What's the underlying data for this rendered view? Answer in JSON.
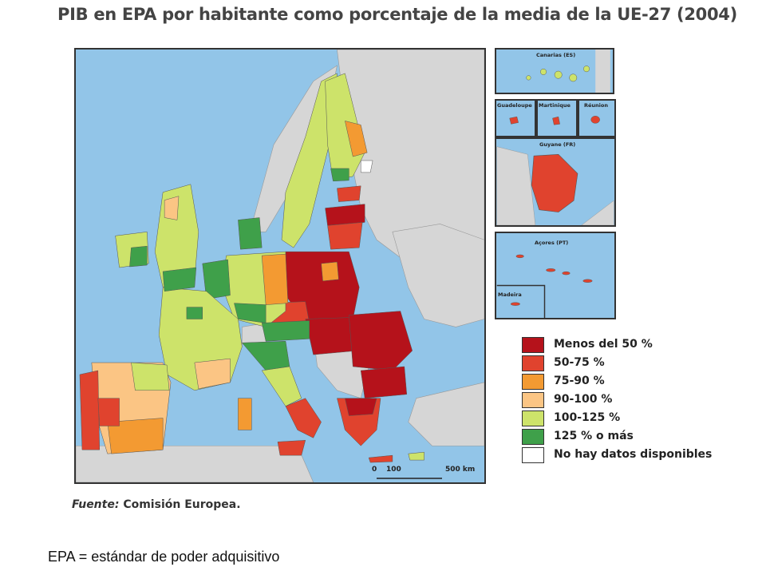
{
  "title": "PIB en EPA por habitante como porcentaje de la media de la UE-27 (2004)",
  "colors": {
    "sea": "#92c5e8",
    "non_eu": "#d6d6d6",
    "lt50": "#b5121b",
    "r50_75": "#e0432e",
    "r75_90": "#f39a32",
    "r90_100": "#fbc584",
    "r100_125": "#cde36a",
    "gt125": "#3fa04a",
    "nodata": "#ffffff"
  },
  "legend": [
    {
      "label": "Menos del 50 %",
      "color": "#b5121b"
    },
    {
      "label": "50-75 %",
      "color": "#e0432e"
    },
    {
      "label": "75-90 %",
      "color": "#f39a32"
    },
    {
      "label": "90-100 %",
      "color": "#fbc584"
    },
    {
      "label": "100-125 %",
      "color": "#cde36a"
    },
    {
      "label": "125 % o más",
      "color": "#3fa04a"
    },
    {
      "label": "No hay datos disponibles",
      "color": "#ffffff"
    }
  ],
  "insets": {
    "canarias": "Canarias (ES)",
    "guadeloupe": "Guadeloupe",
    "martinique": "Martinique",
    "reunion": "Réunion",
    "guyane": "Guyane (FR)",
    "acores": "Açores (PT)",
    "madeira": "Madeira"
  },
  "scale": {
    "start": "0",
    "mid": "100",
    "end": "500 km"
  },
  "source_label": "Fuente:",
  "source_value": "Comisión Europea.",
  "footnote": "EPA = estándar de poder adquisitivo"
}
